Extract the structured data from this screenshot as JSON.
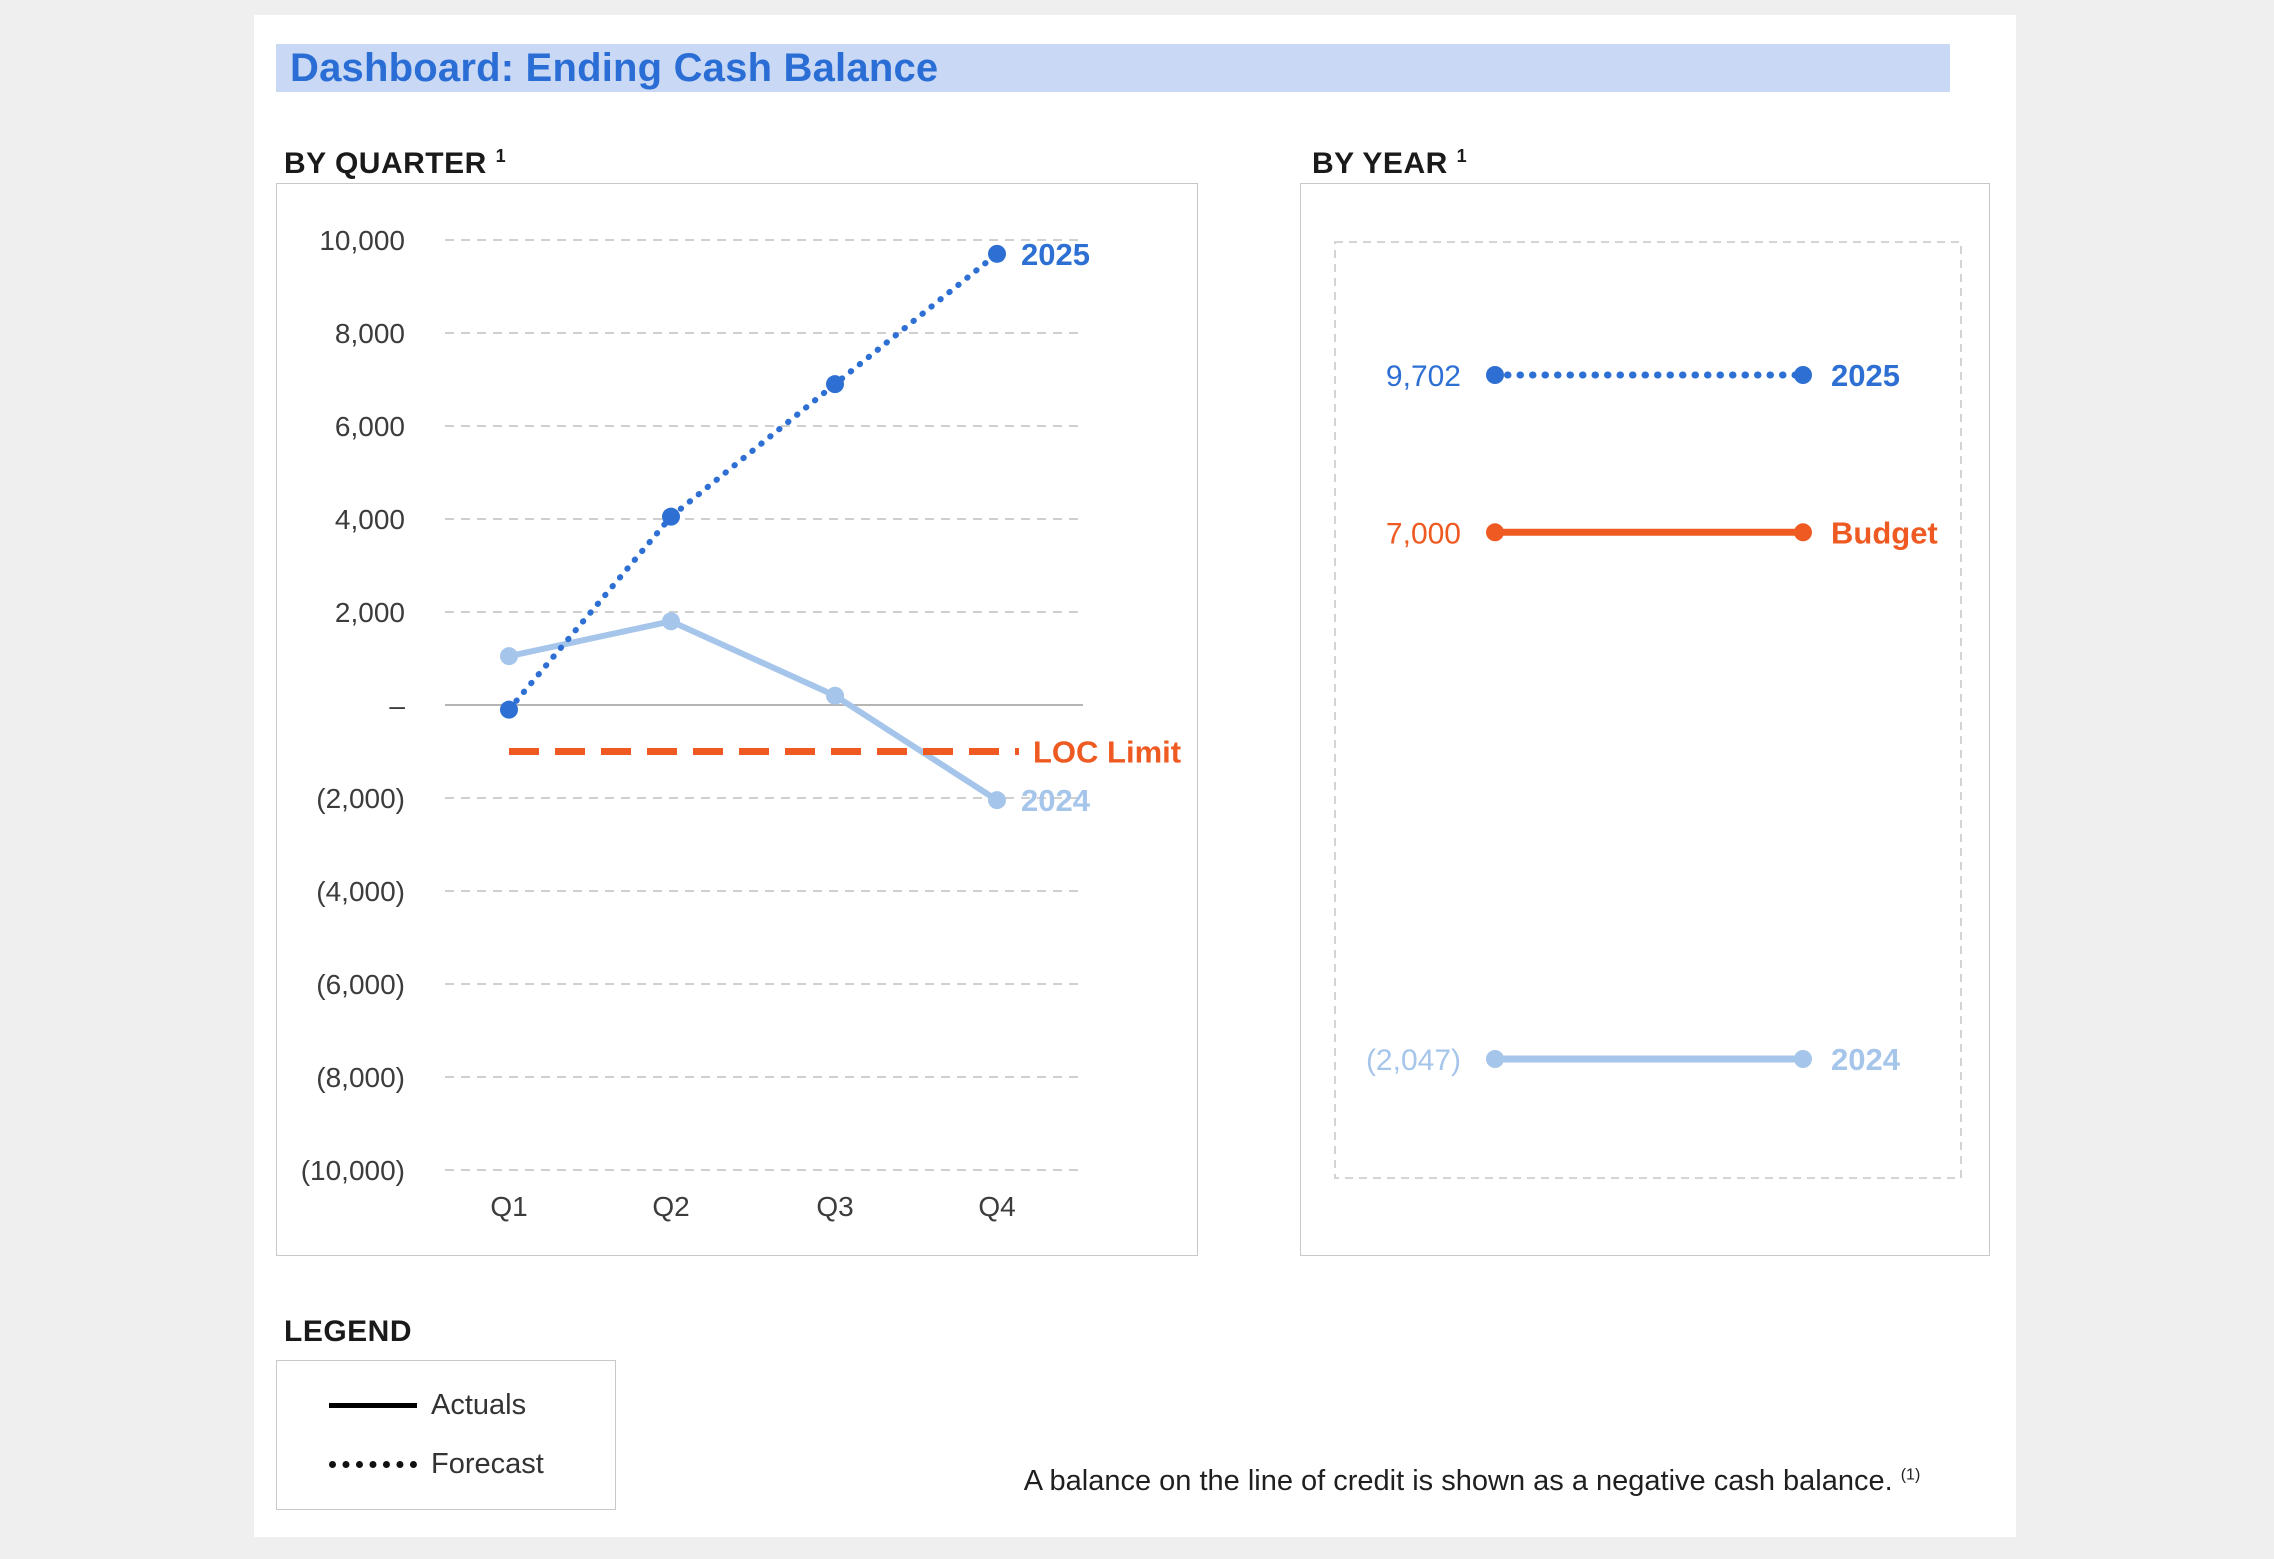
{
  "page": {
    "title": "Dashboard: Ending Cash Balance",
    "footnote": "A balance on the line of credit is shown as a negative cash balance.",
    "footnote_marker": "(1)"
  },
  "legend": {
    "heading": "LEGEND",
    "items": [
      {
        "label": "Actuals",
        "style": "solid"
      },
      {
        "label": "Forecast",
        "style": "dotted"
      }
    ]
  },
  "colors": {
    "blue": "#2D6FD2",
    "light_blue": "#A6C5EA",
    "orange": "#EE5A21",
    "title_bg": "#C9D9F5",
    "grid": "#CFCFCF",
    "zero_line": "#B5B5B5",
    "frame": "#C8C8C8"
  },
  "chart_data": [
    {
      "type": "line",
      "title": "BY QUARTER",
      "title_sup": "1",
      "categories": [
        "Q1",
        "Q2",
        "Q3",
        "Q4"
      ],
      "series": [
        {
          "name": "2024",
          "style": "solid",
          "color_key": "light_blue",
          "values": [
            1050,
            1800,
            200,
            -2047
          ]
        },
        {
          "name": "2025",
          "style": "dotted",
          "color_key": "blue",
          "values": [
            -100,
            4050,
            6900,
            9702
          ]
        },
        {
          "name": "LOC Limit",
          "style": "dashed",
          "color_key": "orange",
          "role": "reference",
          "value": -1000
        }
      ],
      "ylim": [
        -10000,
        10000
      ],
      "ytick_step": 2000,
      "yticks": [
        10000,
        8000,
        6000,
        4000,
        2000,
        0,
        -2000,
        -4000,
        -6000,
        -8000,
        -10000
      ],
      "ytick_labels": [
        "10,000",
        "8,000",
        "6,000",
        "4,000",
        "2,000",
        "–",
        "(2,000)",
        "(4,000)",
        "(6,000)",
        "(8,000)",
        "(10,000)"
      ],
      "grid": true,
      "legend_position": "end-of-line"
    },
    {
      "type": "dot-line",
      "title": "BY YEAR",
      "title_sup": "1",
      "rows": [
        {
          "label": "2025",
          "value_label": "9,702",
          "value": 9702,
          "style": "dotted",
          "color_key": "blue"
        },
        {
          "label": "Budget",
          "value_label": "7,000",
          "value": 7000,
          "style": "solid",
          "color_key": "orange"
        },
        {
          "label": "2024",
          "value_label": "(2,047)",
          "value": -2047,
          "style": "solid",
          "color_key": "light_blue"
        }
      ]
    }
  ]
}
